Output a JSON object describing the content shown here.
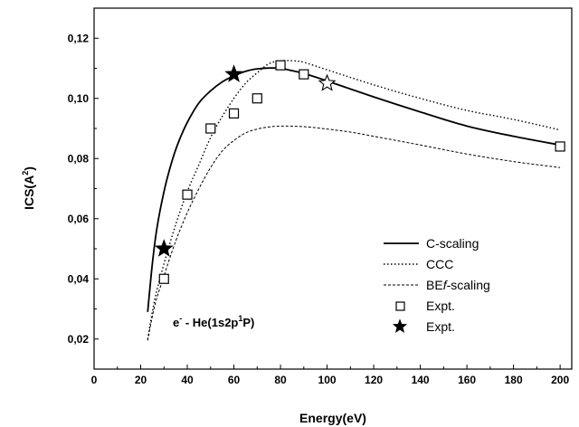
{
  "chart_data": {
    "type": "line",
    "xlabel": "Energy(eV)",
    "ylabel_main": "ICS(A",
    "ylabel_sup": "2",
    "ylabel_tail": ")",
    "xlim": [
      0,
      205
    ],
    "ylim": [
      0.01,
      0.13
    ],
    "x_ticks": [
      0,
      20,
      40,
      60,
      80,
      100,
      120,
      140,
      160,
      180,
      200
    ],
    "x_tick_labels": [
      "0",
      "20",
      "40",
      "60",
      "80",
      "100",
      "120",
      "140",
      "160",
      "180",
      "200"
    ],
    "y_ticks": [
      0.02,
      0.04,
      0.06,
      0.08,
      0.1,
      0.12
    ],
    "y_tick_labels": [
      "0,02",
      "0,04",
      "0,06",
      "0,08",
      "0,10",
      "0,12"
    ],
    "grid": false,
    "legend_placement": "bottom-right",
    "annotation": {
      "prefix": "e",
      "prefix_sup": "-",
      "mid": " - He(1s2p",
      "mid_sup": "1",
      "end": "P)"
    },
    "series": [
      {
        "name": "C-scaling",
        "style": "solid",
        "x": [
          23,
          25,
          27,
          30,
          33,
          36,
          40,
          45,
          50,
          55,
          60,
          65,
          70,
          75,
          80,
          85,
          90,
          100,
          120,
          140,
          160,
          180,
          200
        ],
        "y": [
          0.029,
          0.045,
          0.057,
          0.069,
          0.078,
          0.085,
          0.092,
          0.0985,
          0.1025,
          0.1055,
          0.1075,
          0.109,
          0.1098,
          0.1101,
          0.11,
          0.1092,
          0.1083,
          0.1058,
          0.1005,
          0.0955,
          0.0908,
          0.0874,
          0.0845
        ]
      },
      {
        "name": "CCC",
        "style": "dotted",
        "x": [
          23,
          26,
          30,
          35,
          40,
          45,
          50,
          55,
          60,
          65,
          70,
          75,
          80,
          85,
          90,
          100,
          120,
          140,
          160,
          180,
          200
        ],
        "y": [
          0.02,
          0.033,
          0.045,
          0.058,
          0.069,
          0.078,
          0.087,
          0.094,
          0.1,
          0.105,
          0.1085,
          0.1115,
          0.1125,
          0.1125,
          0.112,
          0.1095,
          0.1045,
          0.1,
          0.096,
          0.093,
          0.0895
        ]
      },
      {
        "name": "BEf-scaling",
        "name_prefix": "BE",
        "name_italic": "f",
        "name_suffix": "-scaling",
        "style": "short-dash",
        "x": [
          23,
          26,
          30,
          35,
          40,
          45,
          50,
          55,
          60,
          65,
          70,
          75,
          80,
          90,
          100,
          110,
          120,
          140,
          160,
          180,
          200
        ],
        "y": [
          0.0195,
          0.031,
          0.041,
          0.0525,
          0.062,
          0.07,
          0.077,
          0.0825,
          0.086,
          0.0885,
          0.0898,
          0.0905,
          0.0908,
          0.0906,
          0.0898,
          0.0888,
          0.0874,
          0.0845,
          0.0815,
          0.079,
          0.077
        ]
      },
      {
        "name": "Expt.",
        "style": "open-square",
        "x": [
          30,
          40,
          50,
          60,
          70,
          80,
          90,
          200
        ],
        "y": [
          0.04,
          0.068,
          0.09,
          0.095,
          0.1,
          0.111,
          0.108,
          0.084
        ]
      },
      {
        "name": "Expt.",
        "style": "star",
        "x": [
          30,
          60
        ],
        "y": [
          0.05,
          0.108
        ]
      }
    ],
    "extra_marker": {
      "style": "open-star",
      "x": 100,
      "y": 0.105
    }
  }
}
